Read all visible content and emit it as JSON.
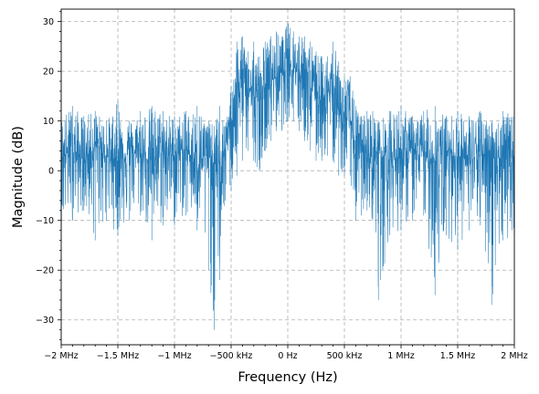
{
  "chart_data": {
    "type": "line",
    "title": "",
    "xlabel": "Frequency (Hz)",
    "ylabel": "Magnitude (dB)",
    "xlim": [
      -2000000,
      2000000
    ],
    "ylim": [
      -35,
      32.5
    ],
    "grid": true,
    "x_ticks": [
      {
        "value": -2000000,
        "label": "−2 MHz"
      },
      {
        "value": -1500000,
        "label": "−1.5 MHz"
      },
      {
        "value": -1000000,
        "label": "−1 MHz"
      },
      {
        "value": -500000,
        "label": "−500 kHz"
      },
      {
        "value": 0,
        "label": "0 Hz"
      },
      {
        "value": 500000,
        "label": "500 kHz"
      },
      {
        "value": 1000000,
        "label": "1 MHz"
      },
      {
        "value": 1500000,
        "label": "1.5 MHz"
      },
      {
        "value": 2000000,
        "label": "2 MHz"
      }
    ],
    "y_ticks": [
      {
        "value": -30,
        "label": "−30"
      },
      {
        "value": -20,
        "label": "−20"
      },
      {
        "value": -10,
        "label": "−10"
      },
      {
        "value": 0,
        "label": "0"
      },
      {
        "value": 10,
        "label": "10"
      },
      {
        "value": 20,
        "label": "20"
      },
      {
        "value": 30,
        "label": "30"
      }
    ],
    "series": [
      {
        "color": "#1f77b4",
        "x": [
          -2000000,
          -1900000,
          -1800000,
          -1700000,
          -1600000,
          -1500000,
          -1400000,
          -1300000,
          -1200000,
          -1100000,
          -1000000,
          -900000,
          -800000,
          -700000,
          -650000,
          -600000,
          -550000,
          -500000,
          -450000,
          -400000,
          -350000,
          -300000,
          -250000,
          -200000,
          -150000,
          -100000,
          -50000,
          0,
          50000,
          100000,
          150000,
          200000,
          250000,
          300000,
          350000,
          400000,
          450000,
          500000,
          550000,
          600000,
          650000,
          700000,
          750000,
          800000,
          900000,
          1000000,
          1100000,
          1200000,
          1300000,
          1400000,
          1500000,
          1600000,
          1700000,
          1800000,
          1900000,
          2000000
        ],
        "y": [
          3,
          4,
          2,
          5,
          3,
          2,
          4,
          3,
          2,
          4,
          3,
          4,
          2,
          3,
          1,
          -2,
          5,
          10,
          16,
          18,
          17,
          15,
          14,
          17,
          18,
          19,
          20,
          22,
          21,
          20,
          19,
          17,
          15,
          14,
          16,
          15,
          12,
          10,
          11,
          3,
          4,
          2,
          3,
          4,
          2,
          3,
          4,
          3,
          2,
          4,
          3,
          2,
          3,
          4,
          2,
          3
        ],
        "envelope_min": [
          -12,
          -10,
          -8,
          -14,
          -10,
          -13,
          -10,
          -9,
          -14,
          -11,
          -11,
          -9,
          -12,
          -20,
          -32,
          -22,
          -6,
          -4,
          -1,
          2,
          4,
          2,
          0,
          4,
          6,
          8,
          8,
          10,
          10,
          8,
          6,
          4,
          2,
          2,
          3,
          2,
          -1,
          -1,
          -1,
          -10,
          -9,
          -8,
          -10,
          -26,
          -13,
          -12,
          -10,
          -9,
          -25,
          -13,
          -16,
          -12,
          -11,
          -27,
          -14,
          -13
        ],
        "envelope_max": [
          11,
          13,
          11,
          12,
          10,
          14,
          10,
          12,
          13,
          12,
          11,
          12,
          13,
          10,
          9,
          13,
          9,
          17,
          26,
          27,
          24,
          26,
          23,
          26,
          27,
          28,
          27,
          30,
          28,
          27,
          27,
          26,
          24,
          23,
          23,
          26,
          22,
          19,
          19,
          13,
          11,
          12,
          12,
          10,
          12,
          13,
          11,
          12,
          13,
          11,
          12,
          11,
          12,
          10,
          12,
          11
        ]
      }
    ]
  }
}
